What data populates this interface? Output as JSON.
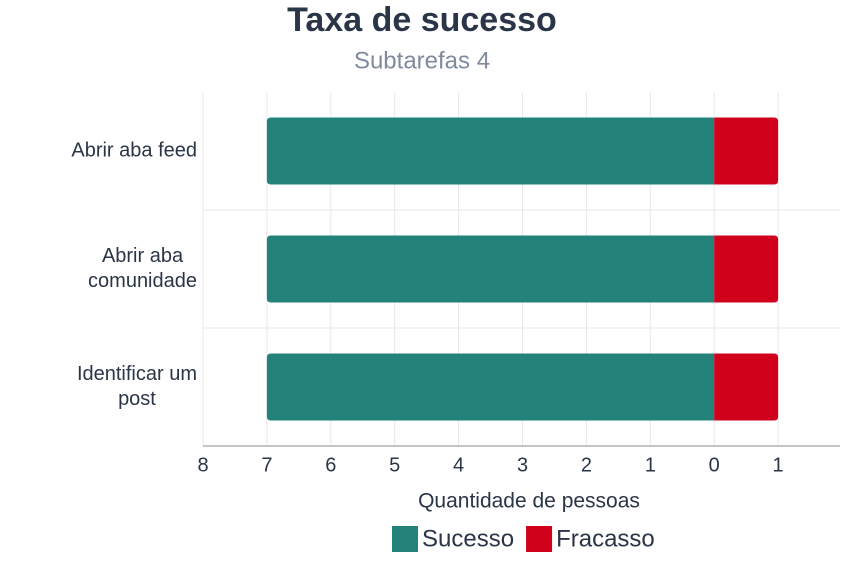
{
  "chart_data": {
    "type": "diverging-bar",
    "title": "Taxa de sucesso",
    "subtitle": "Subtarefas 4",
    "x_label": "Quantidade de pessoas",
    "categories": [
      "Abrir aba feed",
      "Abrir aba\ncomunidade",
      "Identificar um\npost"
    ],
    "series": [
      {
        "name": "Sucesso",
        "color": "#23837a",
        "values": [
          -7,
          -7,
          -7
        ]
      },
      {
        "name": "Fracasso",
        "color": "#d0021b",
        "values": [
          1,
          1,
          1
        ]
      }
    ],
    "xlim": [
      -8,
      2
    ],
    "xticks": [
      {
        "value": -8,
        "label": "8"
      },
      {
        "value": -7,
        "label": "7"
      },
      {
        "value": -6,
        "label": "6"
      },
      {
        "value": -5,
        "label": "5"
      },
      {
        "value": -4,
        "label": "4"
      },
      {
        "value": -3,
        "label": "3"
      },
      {
        "value": -2,
        "label": "2"
      },
      {
        "value": -1,
        "label": "1"
      },
      0,
      1
    ],
    "grid": true,
    "legend": "bottom"
  }
}
